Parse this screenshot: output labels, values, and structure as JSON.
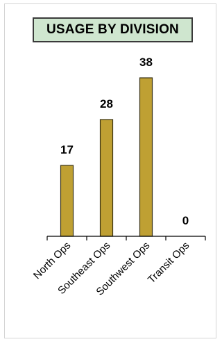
{
  "chart_data": {
    "type": "bar",
    "title": "USAGE BY DIVISION",
    "categories": [
      "North Ops",
      "Southeast Ops",
      "Southwest Ops",
      "Transit Ops"
    ],
    "values": [
      17,
      28,
      38,
      0
    ],
    "xlabel": "",
    "ylabel": "",
    "ylim": [
      0,
      40
    ],
    "grid": false,
    "legend": "none",
    "bar_color": "#bfa033",
    "title_background": "#cfe6cf"
  }
}
